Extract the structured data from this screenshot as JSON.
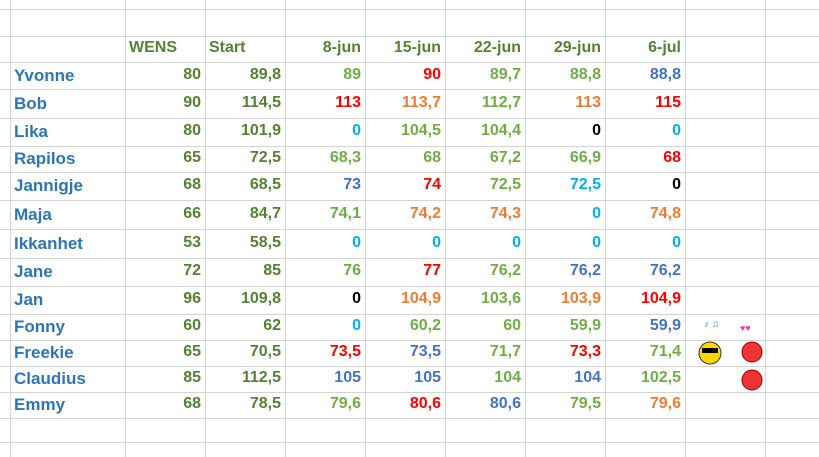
{
  "header": {
    "cells": [
      "WENS",
      "Start",
      "8-jun",
      "15-jun",
      "22-jun",
      "29-jun",
      "6-jul"
    ],
    "colors": [
      "#548235",
      "#548235",
      "#548235",
      "#548235",
      "#548235",
      "#548235",
      "#548235"
    ]
  },
  "rows": [
    {
      "name": "Yvonne",
      "cells": [
        "80",
        "89,8",
        "89",
        "90",
        "89,7",
        "88,8",
        "88,8"
      ],
      "colors": [
        "#548235",
        "#548235",
        "#70ad47",
        "#ff0000",
        "#70ad47",
        "#70ad47",
        "#4472c4"
      ]
    },
    {
      "name": "Bob",
      "cells": [
        "90",
        "114,5",
        "113",
        "113,7",
        "112,7",
        "113",
        "115"
      ],
      "colors": [
        "#548235",
        "#548235",
        "#ff0000",
        "#ed7d31",
        "#70ad47",
        "#ed7d31",
        "#ff0000"
      ]
    },
    {
      "name": "Lika",
      "cells": [
        "80",
        "101,9",
        "0",
        "104,5",
        "104,4",
        "0",
        "0"
      ],
      "colors": [
        "#548235",
        "#548235",
        "#00b0f0",
        "#70ad47",
        "#70ad47",
        "#000000",
        "#00b0f0"
      ]
    },
    {
      "name": "Rapilos",
      "cells": [
        "65",
        "72,5",
        "68,3",
        "68",
        "67,2",
        "66,9",
        "68"
      ],
      "colors": [
        "#548235",
        "#548235",
        "#70ad47",
        "#70ad47",
        "#70ad47",
        "#70ad47",
        "#ff0000"
      ]
    },
    {
      "name": "Jannigje",
      "cells": [
        "68",
        "68,5",
        "73",
        "74",
        "72,5",
        "72,5",
        "0"
      ],
      "colors": [
        "#548235",
        "#548235",
        "#4472c4",
        "#ff0000",
        "#70ad47",
        "#00b0f0",
        "#000000"
      ]
    },
    {
      "name": "Maja",
      "cells": [
        "66",
        "84,7",
        "74,1",
        "74,2",
        "74,3",
        "0",
        "74,8"
      ],
      "colors": [
        "#548235",
        "#548235",
        "#70ad47",
        "#ed7d31",
        "#ed7d31",
        "#00b0f0",
        "#ed7d31"
      ]
    },
    {
      "name": "Ikkanhet",
      "cells": [
        "53",
        "58,5",
        "0",
        "0",
        "0",
        "0",
        "0"
      ],
      "colors": [
        "#548235",
        "#548235",
        "#00b0f0",
        "#00b0f0",
        "#00b0f0",
        "#00b0f0",
        "#00b0f0"
      ]
    },
    {
      "name": "Jane",
      "cells": [
        "72",
        "85",
        "76",
        "77",
        "76,2",
        "76,2",
        "76,2"
      ],
      "colors": [
        "#548235",
        "#548235",
        "#70ad47",
        "#ff0000",
        "#70ad47",
        "#4472c4",
        "#4472c4"
      ]
    },
    {
      "name": "Jan",
      "cells": [
        "96",
        "109,8",
        "0",
        "104,9",
        "103,6",
        "103,9",
        "104,9"
      ],
      "colors": [
        "#548235",
        "#548235",
        "#000000",
        "#ed7d31",
        "#70ad47",
        "#ed7d31",
        "#ff0000"
      ]
    },
    {
      "name": "Fonny",
      "cells": [
        "60",
        "62",
        "0",
        "60,2",
        "60",
        "59,9",
        "59,9"
      ],
      "colors": [
        "#548235",
        "#548235",
        "#00b0f0",
        "#70ad47",
        "#70ad47",
        "#70ad47",
        "#4472c4"
      ]
    },
    {
      "name": "Freekie",
      "cells": [
        "65",
        "70,5",
        "73,5",
        "73,5",
        "71,7",
        "73,3",
        "71,4"
      ],
      "colors": [
        "#548235",
        "#548235",
        "#ff0000",
        "#4472c4",
        "#70ad47",
        "#ff0000",
        "#70ad47"
      ]
    },
    {
      "name": "Claudius",
      "cells": [
        "85",
        "112,5",
        "105",
        "105",
        "104",
        "104",
        "102,5"
      ],
      "colors": [
        "#548235",
        "#548235",
        "#4472c4",
        "#4472c4",
        "#70ad47",
        "#4472c4",
        "#70ad47"
      ]
    },
    {
      "name": "Emmy",
      "cells": [
        "68",
        "78,5",
        "79,6",
        "80,6",
        "80,6",
        "79,5",
        "79,6"
      ],
      "colors": [
        "#548235",
        "#548235",
        "#70ad47",
        "#ff0000",
        "#4472c4",
        "#70ad47",
        "#ed7d31"
      ]
    }
  ]
}
